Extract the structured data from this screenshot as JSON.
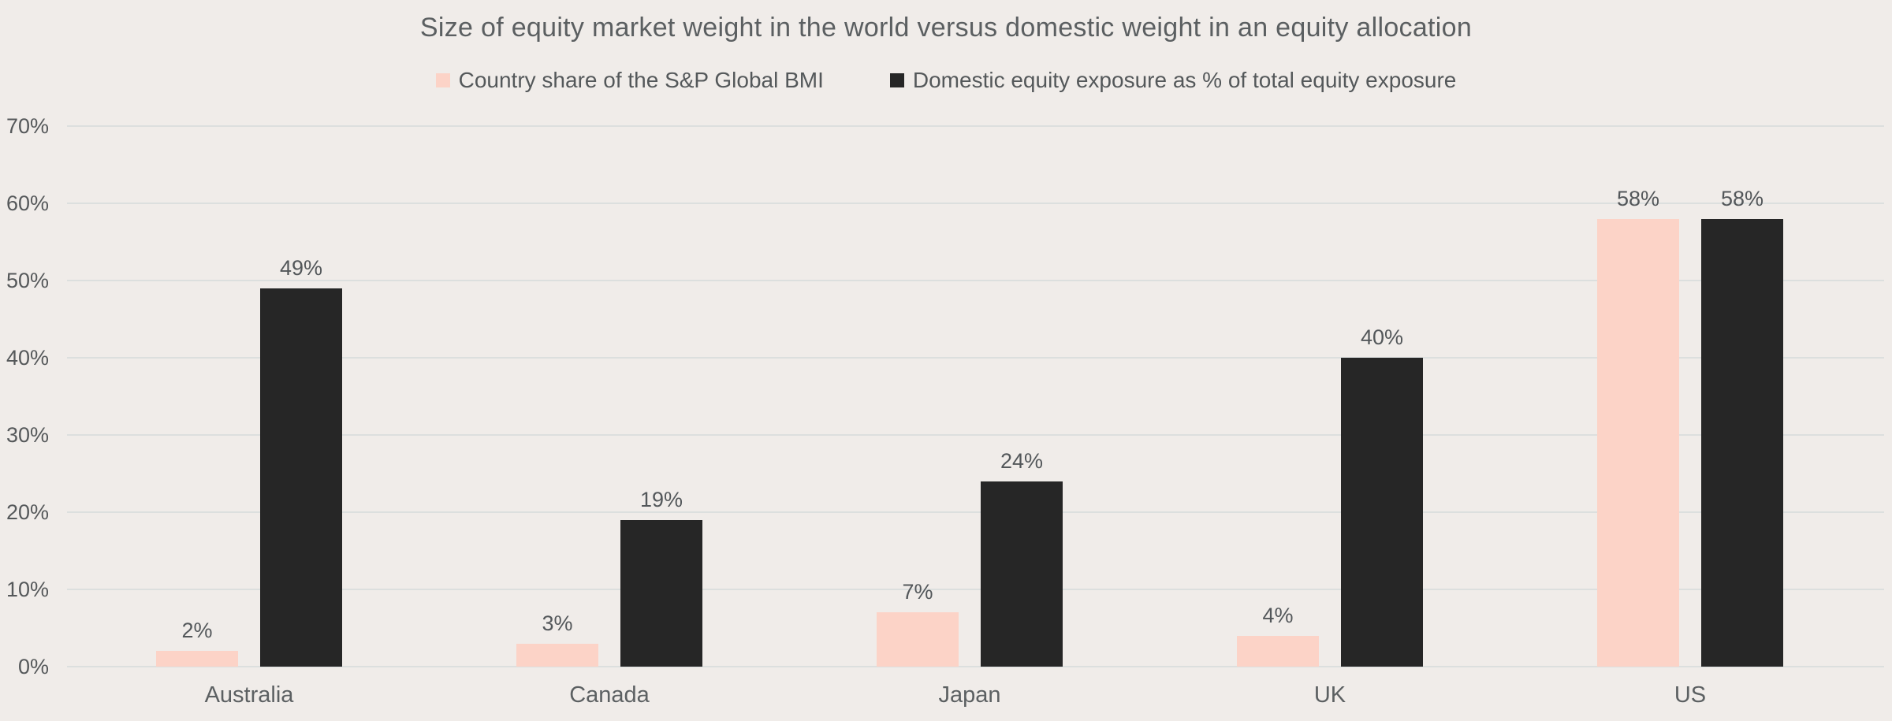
{
  "chart_data": {
    "type": "bar",
    "title": "Size of equity market weight in the world versus domestic weight in an equity allocation",
    "categories": [
      "Australia",
      "Canada",
      "Japan",
      "UK",
      "US"
    ],
    "series": [
      {
        "name": "Country share of the S&P Global BMI",
        "color": "#fcd3c7",
        "values": [
          2,
          3,
          7,
          4,
          58
        ],
        "value_labels": [
          "2%",
          "3%",
          "7%",
          "4%",
          "58%"
        ]
      },
      {
        "name": "Domestic equity exposure as % of total equity exposure",
        "color": "#262626",
        "values": [
          49,
          19,
          24,
          40,
          58
        ],
        "value_labels": [
          "49%",
          "19%",
          "24%",
          "40%",
          "58%"
        ]
      }
    ],
    "xlabel": "",
    "ylabel": "",
    "ylim": [
      0,
      70
    ],
    "ytick_step": 10,
    "ytick_labels": [
      "0%",
      "10%",
      "20%",
      "30%",
      "40%",
      "50%",
      "60%",
      "70%"
    ],
    "grid": true,
    "legend_position": "top"
  },
  "colors": {
    "background": "#f0ece9",
    "gridline": "#dcdfde",
    "title_text": "#5b5f61",
    "label_text": "#55585a",
    "series_1": "#fcd3c7",
    "series_2": "#262626"
  }
}
